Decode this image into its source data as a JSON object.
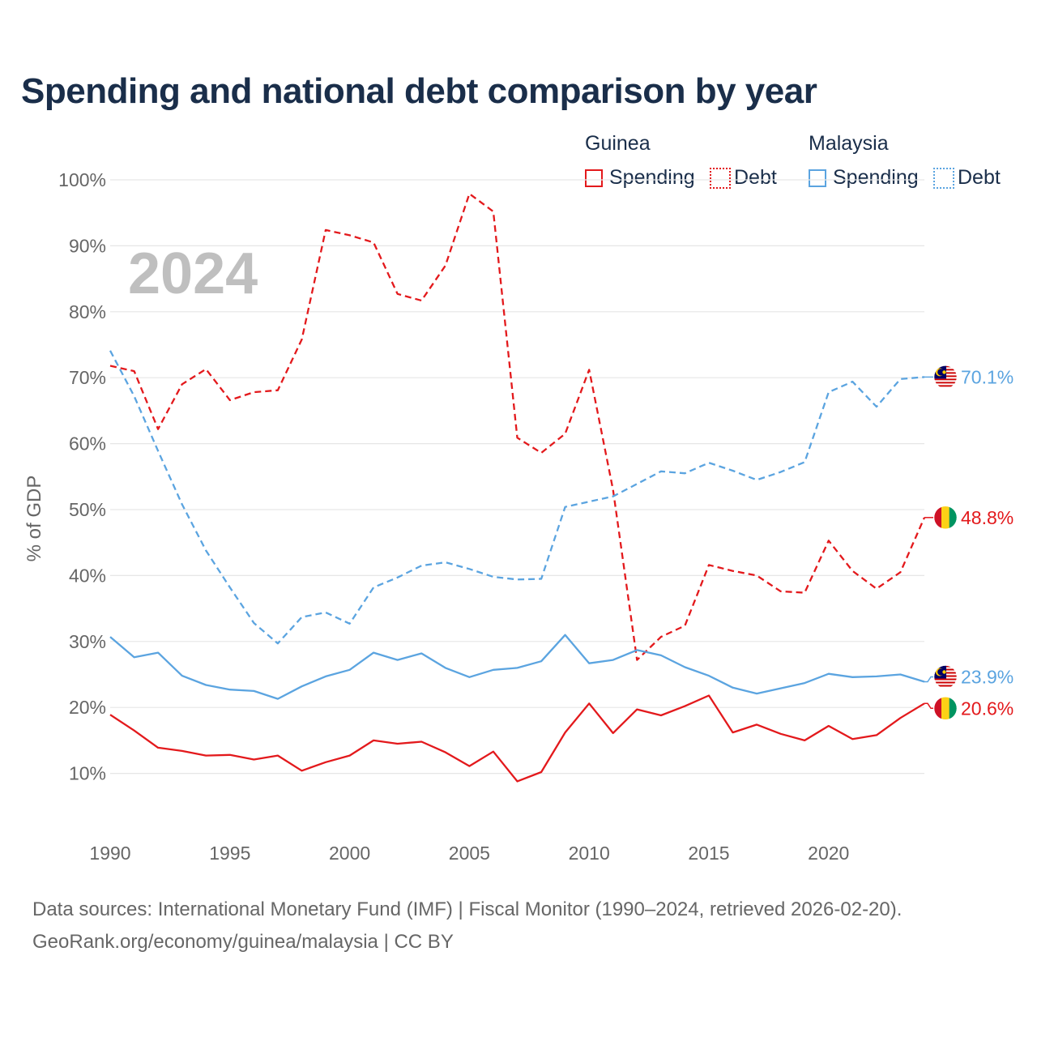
{
  "title": "Spending and national debt comparison by year",
  "legend": {
    "groups": [
      {
        "label": "Guinea",
        "color": "#e3191c",
        "items": [
          {
            "label": "Spending",
            "style": "solid"
          },
          {
            "label": "Debt",
            "style": "dotted"
          }
        ]
      },
      {
        "label": "Malaysia",
        "color": "#5ba4e0",
        "items": [
          {
            "label": "Spending",
            "style": "solid"
          },
          {
            "label": "Debt",
            "style": "dotted"
          }
        ]
      }
    ]
  },
  "year_watermark": "2024",
  "footer": {
    "line1": "Data sources: International Monetary Fund (IMF) | Fiscal Monitor (1990–2024, retrieved 2026-02-20).",
    "line2": "GeoRank.org/economy/guinea/malaysia | CC BY"
  },
  "chart_data": {
    "type": "line",
    "ylabel": "% of GDP",
    "xlabel": "",
    "ylim": [
      0,
      100
    ],
    "xlim": [
      1990,
      2024
    ],
    "yticks": [
      10,
      20,
      30,
      40,
      50,
      60,
      70,
      80,
      90,
      100
    ],
    "ytick_labels": [
      "10%",
      "20%",
      "30%",
      "40%",
      "50%",
      "60%",
      "70%",
      "80%",
      "90%",
      "100%"
    ],
    "xticks": [
      1990,
      1995,
      2000,
      2005,
      2010,
      2015,
      2020
    ],
    "xtick_labels": [
      "1990",
      "1995",
      "2000",
      "2005",
      "2010",
      "2015",
      "2020"
    ],
    "grid": true,
    "x": [
      1990,
      1991,
      1992,
      1993,
      1994,
      1995,
      1996,
      1997,
      1998,
      1999,
      2000,
      2001,
      2002,
      2003,
      2004,
      2005,
      2006,
      2007,
      2008,
      2009,
      2010,
      2011,
      2012,
      2013,
      2014,
      2015,
      2016,
      2017,
      2018,
      2019,
      2020,
      2021,
      2022,
      2023,
      2024
    ],
    "series": [
      {
        "name": "Guinea Debt",
        "country": "Guinea",
        "color": "#e3191c",
        "dash": "dashed",
        "values": [
          71.8,
          71.0,
          62.2,
          69.0,
          71.3,
          66.6,
          67.8,
          68.1,
          75.8,
          92.4,
          91.6,
          90.5,
          82.7,
          81.7,
          87.0,
          97.9,
          95.2,
          60.9,
          58.6,
          61.5,
          71.2,
          53.0,
          27.2,
          30.7,
          32.4,
          41.6,
          40.7,
          40.0,
          37.6,
          37.4,
          45.3,
          40.7,
          38.0,
          40.5,
          48.8
        ],
        "end_label": "48.8%"
      },
      {
        "name": "Malaysia Debt",
        "country": "Malaysia",
        "color": "#5ba4e0",
        "dash": "dashed",
        "values": [
          74.1,
          67.2,
          58.9,
          50.8,
          43.8,
          38.2,
          32.8,
          29.7,
          33.7,
          34.4,
          32.7,
          38.2,
          39.7,
          41.5,
          42.0,
          41.0,
          39.8,
          39.4,
          39.5,
          50.4,
          51.2,
          52.0,
          53.9,
          55.8,
          55.5,
          57.1,
          55.9,
          54.5,
          55.7,
          57.2,
          67.8,
          69.4,
          65.6,
          69.8,
          70.1
        ],
        "end_label": "70.1%"
      },
      {
        "name": "Malaysia Spending",
        "country": "Malaysia",
        "color": "#5ba4e0",
        "dash": "solid",
        "values": [
          30.7,
          27.6,
          28.3,
          24.8,
          23.4,
          22.7,
          22.5,
          21.3,
          23.2,
          24.7,
          25.7,
          28.3,
          27.2,
          28.2,
          26.0,
          24.6,
          25.7,
          26.0,
          27.0,
          31.0,
          26.7,
          27.2,
          28.7,
          27.9,
          26.1,
          24.8,
          23.0,
          22.1,
          22.9,
          23.7,
          25.1,
          24.6,
          24.7,
          25.0,
          23.9
        ],
        "end_label": "23.9%"
      },
      {
        "name": "Guinea Spending",
        "country": "Guinea",
        "color": "#e3191c",
        "dash": "solid",
        "values": [
          18.9,
          16.5,
          13.9,
          13.4,
          12.7,
          12.8,
          12.1,
          12.7,
          10.4,
          11.7,
          12.7,
          15.0,
          14.5,
          14.8,
          13.2,
          11.1,
          13.3,
          8.8,
          10.2,
          16.2,
          20.6,
          16.1,
          19.7,
          18.8,
          20.2,
          21.8,
          16.2,
          17.4,
          16.0,
          15.0,
          17.2,
          15.2,
          15.8,
          18.4,
          20.6
        ],
        "end_label": "20.6%"
      }
    ]
  }
}
